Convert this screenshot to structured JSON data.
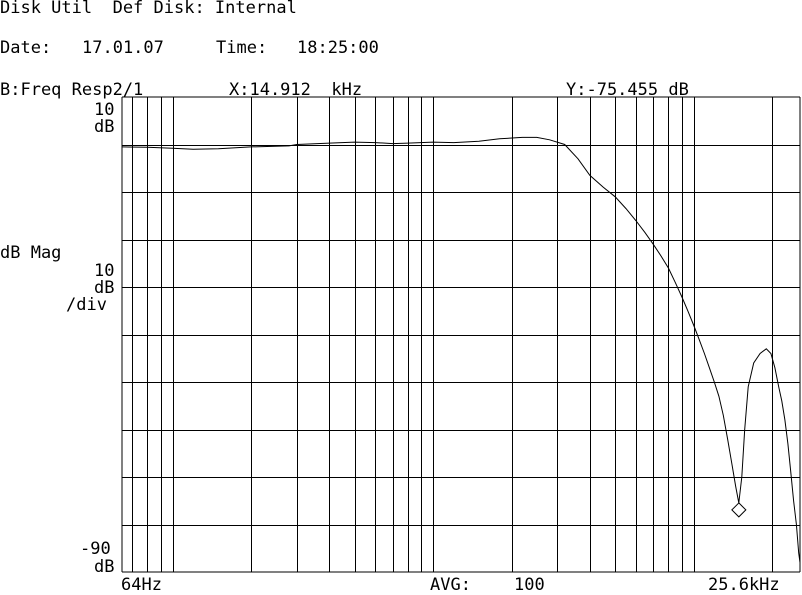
{
  "header": {
    "line1": "Disk Util  Def Disk: Internal",
    "date_label": "Date:",
    "date_value": "17.01.07",
    "time_label": "Time:",
    "time_value": "18:25:00",
    "trace_label": "B:Freq Resp2/1",
    "marker_x": "X:14.912  kHz",
    "marker_y": "Y:-75.455 dB"
  },
  "axis_labels": {
    "top_value": "10",
    "top_unit": "dB",
    "y_name": "dB Mag",
    "scale_value": "10",
    "scale_unit": "dB",
    "scale_per": "/div",
    "bottom_value": "-90",
    "bottom_unit": "dB",
    "x_start": "64Hz",
    "avg_label": "AVG:",
    "avg_value": "100",
    "x_end": "25.6kHz"
  },
  "colors": {
    "background": "#ffffff",
    "ink": "#000000"
  },
  "chart_data": {
    "type": "line",
    "x_scale": "log",
    "xlim": [
      64,
      25600
    ],
    "ylim": [
      -90,
      10
    ],
    "grid": true,
    "ylabel": "dB Mag",
    "series": [
      {
        "x": [
          64,
          80,
          100,
          120,
          150,
          200,
          280,
          300,
          400,
          500,
          600,
          700,
          800,
          1000,
          1200,
          1500,
          1800,
          2200,
          2500,
          2800,
          3200,
          3600,
          4000,
          4500,
          5000,
          5500,
          6000,
          6500,
          7000,
          7500,
          8000,
          8500,
          9000,
          9500,
          10000,
          10500,
          11000,
          11500,
          12000,
          12500,
          13000,
          13500,
          14000,
          14500,
          14912,
          15300,
          15700,
          16200,
          17000,
          18000,
          19000,
          19800,
          20500,
          21200,
          21800,
          22400,
          23000,
          23600,
          24200,
          24800,
          25300,
          25600
        ],
        "y": [
          -0.5,
          -0.6,
          -0.8,
          -1.0,
          -0.9,
          -0.5,
          -0.3,
          0.0,
          0.3,
          0.5,
          0.4,
          0.2,
          0.3,
          0.5,
          0.4,
          0.7,
          1.2,
          1.5,
          1.5,
          1.0,
          0.0,
          -3.0,
          -6.5,
          -9.0,
          -11.0,
          -13.5,
          -16.0,
          -18.5,
          -21.0,
          -23.5,
          -26.0,
          -29.0,
          -32.0,
          -35.0,
          -38.0,
          -41.0,
          -44.0,
          -47.0,
          -50.0,
          -53.0,
          -57.0,
          -62.0,
          -67.0,
          -72.0,
          -75.455,
          -70.0,
          -60.0,
          -51.0,
          -46.0,
          -44.0,
          -43.0,
          -44.0,
          -47.0,
          -51.0,
          -54.0,
          -58.0,
          -63.0,
          -69.0,
          -75.0,
          -80.0,
          -86.0,
          -88.0
        ]
      }
    ],
    "marker": {
      "x": 14912,
      "y": -75.455
    }
  }
}
